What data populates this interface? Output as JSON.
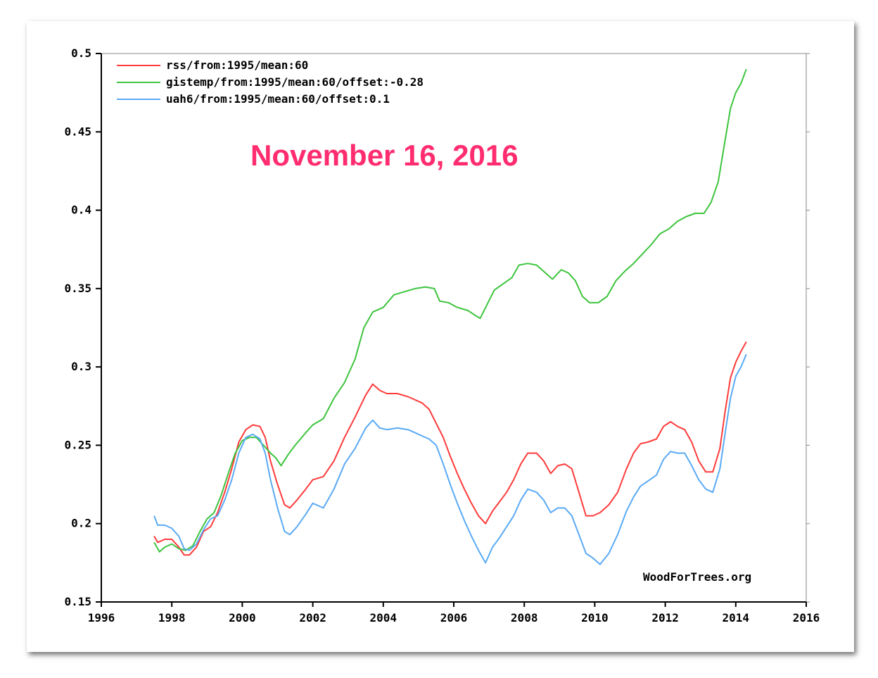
{
  "annotation": {
    "text": "November 16, 2016",
    "color": "#ff2d6f"
  },
  "credit": "WoodForTrees.org",
  "chart_data": {
    "type": "line",
    "title": "",
    "xlabel": "",
    "ylabel": "",
    "xlim": [
      1996,
      2016
    ],
    "ylim": [
      0.15,
      0.5
    ],
    "x_ticks": [
      1996,
      1998,
      2000,
      2002,
      2004,
      2006,
      2008,
      2010,
      2012,
      2014,
      2016
    ],
    "y_ticks": [
      0.15,
      0.2,
      0.25,
      0.3,
      0.35,
      0.4,
      0.45,
      0.5
    ],
    "x_tick_labels": [
      "1996",
      "1998",
      "2000",
      "2002",
      "2004",
      "2006",
      "2008",
      "2010",
      "2012",
      "2014",
      "2016"
    ],
    "y_tick_labels": [
      "0.15",
      "0.2",
      "0.25",
      "0.3",
      "0.35",
      "0.4",
      "0.45",
      "0.5"
    ],
    "grid": false,
    "legend_position": "top-left",
    "series": [
      {
        "name": "rss/from:1995/mean:60",
        "color": "#ff3b3b",
        "points": [
          [
            1997.5,
            0.192
          ],
          [
            1997.6,
            0.188
          ],
          [
            1997.8,
            0.19
          ],
          [
            1998.0,
            0.19
          ],
          [
            1998.2,
            0.185
          ],
          [
            1998.35,
            0.18
          ],
          [
            1998.5,
            0.18
          ],
          [
            1998.7,
            0.185
          ],
          [
            1998.9,
            0.195
          ],
          [
            1999.1,
            0.198
          ],
          [
            1999.3,
            0.207
          ],
          [
            1999.5,
            0.22
          ],
          [
            1999.7,
            0.235
          ],
          [
            1999.9,
            0.252
          ],
          [
            2000.1,
            0.26
          ],
          [
            2000.3,
            0.263
          ],
          [
            2000.5,
            0.262
          ],
          [
            2000.65,
            0.255
          ],
          [
            2000.8,
            0.24
          ],
          [
            2001.0,
            0.225
          ],
          [
            2001.2,
            0.212
          ],
          [
            2001.35,
            0.21
          ],
          [
            2001.55,
            0.215
          ],
          [
            2001.8,
            0.222
          ],
          [
            2002.0,
            0.228
          ],
          [
            2002.3,
            0.23
          ],
          [
            2002.6,
            0.24
          ],
          [
            2002.9,
            0.255
          ],
          [
            2003.2,
            0.268
          ],
          [
            2003.5,
            0.282
          ],
          [
            2003.7,
            0.289
          ],
          [
            2003.9,
            0.285
          ],
          [
            2004.1,
            0.283
          ],
          [
            2004.4,
            0.283
          ],
          [
            2004.7,
            0.281
          ],
          [
            2004.9,
            0.279
          ],
          [
            2005.1,
            0.277
          ],
          [
            2005.3,
            0.273
          ],
          [
            2005.5,
            0.264
          ],
          [
            2005.7,
            0.255
          ],
          [
            2005.9,
            0.243
          ],
          [
            2006.1,
            0.232
          ],
          [
            2006.3,
            0.222
          ],
          [
            2006.5,
            0.213
          ],
          [
            2006.7,
            0.205
          ],
          [
            2006.9,
            0.2
          ],
          [
            2007.1,
            0.208
          ],
          [
            2007.3,
            0.214
          ],
          [
            2007.5,
            0.22
          ],
          [
            2007.7,
            0.228
          ],
          [
            2007.9,
            0.238
          ],
          [
            2008.1,
            0.245
          ],
          [
            2008.35,
            0.245
          ],
          [
            2008.55,
            0.24
          ],
          [
            2008.75,
            0.232
          ],
          [
            2008.95,
            0.237
          ],
          [
            2009.15,
            0.238
          ],
          [
            2009.35,
            0.235
          ],
          [
            2009.55,
            0.22
          ],
          [
            2009.75,
            0.205
          ],
          [
            2009.95,
            0.205
          ],
          [
            2010.15,
            0.207
          ],
          [
            2010.4,
            0.212
          ],
          [
            2010.65,
            0.22
          ],
          [
            2010.9,
            0.235
          ],
          [
            2011.1,
            0.245
          ],
          [
            2011.3,
            0.251
          ],
          [
            2011.5,
            0.252
          ],
          [
            2011.75,
            0.254
          ],
          [
            2011.95,
            0.262
          ],
          [
            2012.15,
            0.265
          ],
          [
            2012.35,
            0.262
          ],
          [
            2012.55,
            0.26
          ],
          [
            2012.75,
            0.252
          ],
          [
            2012.95,
            0.24
          ],
          [
            2013.15,
            0.233
          ],
          [
            2013.35,
            0.233
          ],
          [
            2013.55,
            0.248
          ],
          [
            2013.7,
            0.272
          ],
          [
            2013.85,
            0.293
          ],
          [
            2014.0,
            0.303
          ],
          [
            2014.15,
            0.31
          ],
          [
            2014.3,
            0.316
          ]
        ]
      },
      {
        "name": "gistemp/from:1995/mean:60/offset:-0.28",
        "color": "#3dc43d",
        "points": [
          [
            1997.5,
            0.188
          ],
          [
            1997.65,
            0.182
          ],
          [
            1997.8,
            0.185
          ],
          [
            1998.0,
            0.187
          ],
          [
            1998.2,
            0.184
          ],
          [
            1998.4,
            0.183
          ],
          [
            1998.6,
            0.186
          ],
          [
            1998.8,
            0.195
          ],
          [
            1999.0,
            0.203
          ],
          [
            1999.2,
            0.207
          ],
          [
            1999.4,
            0.218
          ],
          [
            1999.6,
            0.232
          ],
          [
            1999.8,
            0.245
          ],
          [
            2000.0,
            0.253
          ],
          [
            2000.2,
            0.255
          ],
          [
            2000.4,
            0.255
          ],
          [
            2000.6,
            0.25
          ],
          [
            2000.8,
            0.245
          ],
          [
            2000.95,
            0.242
          ],
          [
            2001.1,
            0.237
          ],
          [
            2001.3,
            0.244
          ],
          [
            2001.5,
            0.25
          ],
          [
            2001.8,
            0.258
          ],
          [
            2002.0,
            0.263
          ],
          [
            2002.3,
            0.267
          ],
          [
            2002.6,
            0.28
          ],
          [
            2002.9,
            0.29
          ],
          [
            2003.2,
            0.305
          ],
          [
            2003.45,
            0.325
          ],
          [
            2003.7,
            0.335
          ],
          [
            2004.0,
            0.338
          ],
          [
            2004.3,
            0.346
          ],
          [
            2004.6,
            0.348
          ],
          [
            2004.9,
            0.35
          ],
          [
            2005.2,
            0.351
          ],
          [
            2005.45,
            0.35
          ],
          [
            2005.6,
            0.342
          ],
          [
            2005.85,
            0.341
          ],
          [
            2006.1,
            0.338
          ],
          [
            2006.4,
            0.336
          ],
          [
            2006.6,
            0.333
          ],
          [
            2006.75,
            0.331
          ],
          [
            2006.95,
            0.34
          ],
          [
            2007.15,
            0.349
          ],
          [
            2007.4,
            0.353
          ],
          [
            2007.65,
            0.357
          ],
          [
            2007.85,
            0.365
          ],
          [
            2008.1,
            0.366
          ],
          [
            2008.35,
            0.365
          ],
          [
            2008.6,
            0.36
          ],
          [
            2008.8,
            0.356
          ],
          [
            2009.05,
            0.362
          ],
          [
            2009.25,
            0.36
          ],
          [
            2009.45,
            0.355
          ],
          [
            2009.65,
            0.345
          ],
          [
            2009.85,
            0.341
          ],
          [
            2010.1,
            0.341
          ],
          [
            2010.35,
            0.345
          ],
          [
            2010.6,
            0.355
          ],
          [
            2010.85,
            0.361
          ],
          [
            2011.1,
            0.366
          ],
          [
            2011.35,
            0.372
          ],
          [
            2011.6,
            0.378
          ],
          [
            2011.85,
            0.385
          ],
          [
            2012.1,
            0.388
          ],
          [
            2012.35,
            0.393
          ],
          [
            2012.6,
            0.396
          ],
          [
            2012.85,
            0.398
          ],
          [
            2013.1,
            0.398
          ],
          [
            2013.3,
            0.405
          ],
          [
            2013.5,
            0.418
          ],
          [
            2013.7,
            0.445
          ],
          [
            2013.85,
            0.465
          ],
          [
            2014.0,
            0.475
          ],
          [
            2014.15,
            0.481
          ],
          [
            2014.3,
            0.49
          ]
        ]
      },
      {
        "name": "uah6/from:1995/mean:60/offset:0.1",
        "color": "#5aaaf5",
        "points": [
          [
            1997.5,
            0.205
          ],
          [
            1997.6,
            0.199
          ],
          [
            1997.8,
            0.199
          ],
          [
            1998.0,
            0.197
          ],
          [
            1998.2,
            0.192
          ],
          [
            1998.35,
            0.184
          ],
          [
            1998.5,
            0.183
          ],
          [
            1998.7,
            0.187
          ],
          [
            1998.9,
            0.196
          ],
          [
            1999.1,
            0.203
          ],
          [
            1999.3,
            0.205
          ],
          [
            1999.5,
            0.215
          ],
          [
            1999.7,
            0.228
          ],
          [
            1999.9,
            0.245
          ],
          [
            2000.1,
            0.255
          ],
          [
            2000.3,
            0.257
          ],
          [
            2000.5,
            0.254
          ],
          [
            2000.65,
            0.245
          ],
          [
            2000.8,
            0.228
          ],
          [
            2001.0,
            0.21
          ],
          [
            2001.2,
            0.195
          ],
          [
            2001.35,
            0.193
          ],
          [
            2001.55,
            0.198
          ],
          [
            2001.8,
            0.206
          ],
          [
            2002.0,
            0.213
          ],
          [
            2002.3,
            0.21
          ],
          [
            2002.6,
            0.222
          ],
          [
            2002.9,
            0.238
          ],
          [
            2003.2,
            0.248
          ],
          [
            2003.5,
            0.261
          ],
          [
            2003.7,
            0.266
          ],
          [
            2003.9,
            0.261
          ],
          [
            2004.1,
            0.26
          ],
          [
            2004.4,
            0.261
          ],
          [
            2004.7,
            0.26
          ],
          [
            2004.9,
            0.258
          ],
          [
            2005.1,
            0.256
          ],
          [
            2005.3,
            0.254
          ],
          [
            2005.5,
            0.25
          ],
          [
            2005.7,
            0.238
          ],
          [
            2005.9,
            0.225
          ],
          [
            2006.1,
            0.213
          ],
          [
            2006.3,
            0.202
          ],
          [
            2006.5,
            0.192
          ],
          [
            2006.7,
            0.183
          ],
          [
            2006.9,
            0.175
          ],
          [
            2007.1,
            0.185
          ],
          [
            2007.3,
            0.191
          ],
          [
            2007.5,
            0.198
          ],
          [
            2007.7,
            0.205
          ],
          [
            2007.9,
            0.215
          ],
          [
            2008.1,
            0.222
          ],
          [
            2008.35,
            0.22
          ],
          [
            2008.55,
            0.215
          ],
          [
            2008.75,
            0.207
          ],
          [
            2008.95,
            0.21
          ],
          [
            2009.15,
            0.21
          ],
          [
            2009.35,
            0.205
          ],
          [
            2009.55,
            0.193
          ],
          [
            2009.75,
            0.181
          ],
          [
            2009.95,
            0.178
          ],
          [
            2010.15,
            0.174
          ],
          [
            2010.4,
            0.181
          ],
          [
            2010.65,
            0.193
          ],
          [
            2010.9,
            0.208
          ],
          [
            2011.1,
            0.217
          ],
          [
            2011.3,
            0.224
          ],
          [
            2011.5,
            0.227
          ],
          [
            2011.75,
            0.231
          ],
          [
            2011.95,
            0.241
          ],
          [
            2012.15,
            0.246
          ],
          [
            2012.35,
            0.245
          ],
          [
            2012.55,
            0.245
          ],
          [
            2012.75,
            0.237
          ],
          [
            2012.95,
            0.228
          ],
          [
            2013.15,
            0.222
          ],
          [
            2013.35,
            0.22
          ],
          [
            2013.55,
            0.235
          ],
          [
            2013.7,
            0.258
          ],
          [
            2013.85,
            0.28
          ],
          [
            2014.0,
            0.294
          ],
          [
            2014.15,
            0.3
          ],
          [
            2014.3,
            0.308
          ]
        ]
      }
    ]
  }
}
